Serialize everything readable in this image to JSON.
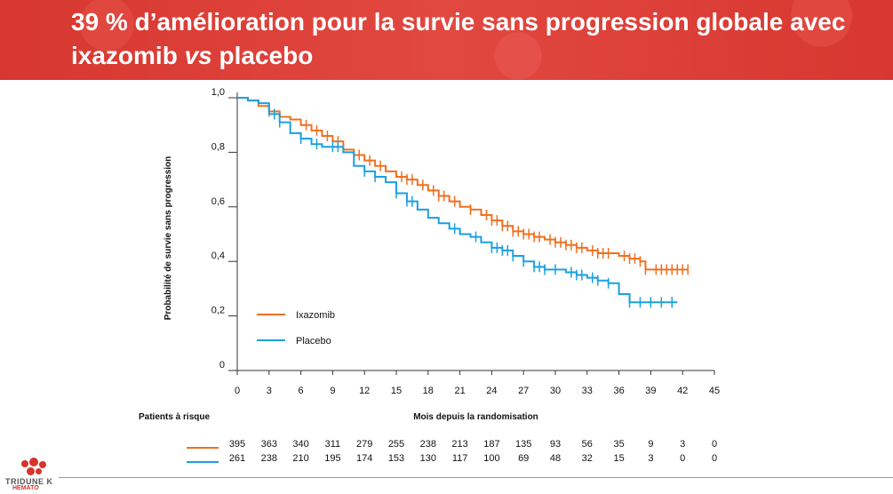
{
  "header": {
    "title_part1": "39 % d’amélioration pour la survie sans progression globale avec ixazomib ",
    "title_italic": "vs",
    "title_part2": " placebo"
  },
  "logo": {
    "name": "TRIDUNE K",
    "sub": "HEMATO"
  },
  "chart_data": {
    "type": "line",
    "xlabel": "Mois depuis la randomisation",
    "ylabel": "Probabilité de survie sans progression",
    "xlim": [
      0,
      45
    ],
    "ylim": [
      0,
      1.0
    ],
    "x_ticks": [
      "0",
      "3",
      "6",
      "9",
      "12",
      "15",
      "18",
      "21",
      "24",
      "27",
      "30",
      "33",
      "36",
      "39",
      "42",
      "45"
    ],
    "y_ticks": [
      "0",
      "0,2",
      "0,4",
      "0,6",
      "0,8",
      "1,0"
    ],
    "legend": [
      "Ixazomib",
      "Placebo"
    ],
    "legend_position": "bottom-left",
    "colors": {
      "Ixazomib": "#f07020",
      "Placebo": "#1aa0e0"
    },
    "series": [
      {
        "name": "Ixazomib",
        "points": [
          [
            0,
            1.0
          ],
          [
            1,
            0.99
          ],
          [
            2,
            0.97
          ],
          [
            3,
            0.95
          ],
          [
            4,
            0.93
          ],
          [
            5,
            0.92
          ],
          [
            6,
            0.9
          ],
          [
            7,
            0.88
          ],
          [
            8,
            0.86
          ],
          [
            9,
            0.84
          ],
          [
            10,
            0.81
          ],
          [
            11,
            0.79
          ],
          [
            12,
            0.77
          ],
          [
            13,
            0.75
          ],
          [
            14,
            0.73
          ],
          [
            15,
            0.71
          ],
          [
            16,
            0.7
          ],
          [
            17,
            0.68
          ],
          [
            18,
            0.66
          ],
          [
            19,
            0.64
          ],
          [
            20,
            0.62
          ],
          [
            21,
            0.6
          ],
          [
            22,
            0.59
          ],
          [
            23,
            0.57
          ],
          [
            24,
            0.55
          ],
          [
            25,
            0.53
          ],
          [
            26,
            0.51
          ],
          [
            27,
            0.5
          ],
          [
            28,
            0.49
          ],
          [
            29,
            0.48
          ],
          [
            30,
            0.47
          ],
          [
            31,
            0.46
          ],
          [
            32,
            0.45
          ],
          [
            33,
            0.44
          ],
          [
            34,
            0.43
          ],
          [
            35,
            0.43
          ],
          [
            36,
            0.42
          ],
          [
            37,
            0.41
          ],
          [
            38,
            0.4
          ],
          [
            38.5,
            0.37
          ],
          [
            42.5,
            0.37
          ]
        ],
        "censor_x": [
          3,
          6.5,
          7.5,
          8.5,
          9.5,
          11.5,
          12.5,
          13.5,
          15.5,
          16,
          16.5,
          17.5,
          18.5,
          19,
          19.5,
          20.5,
          22,
          23.5,
          24,
          24.5,
          25,
          25.5,
          26,
          26.5,
          27,
          27.5,
          28,
          28.5,
          29.5,
          30,
          30.5,
          31,
          31.5,
          32,
          32.5,
          33.5,
          34,
          34.5,
          35,
          36.5,
          37,
          37.5,
          38,
          38.5,
          39.5,
          40,
          40.5,
          41,
          41.5,
          42,
          42.5
        ]
      },
      {
        "name": "Placebo",
        "points": [
          [
            0,
            1.0
          ],
          [
            1,
            0.99
          ],
          [
            2,
            0.98
          ],
          [
            3,
            0.94
          ],
          [
            4,
            0.91
          ],
          [
            5,
            0.87
          ],
          [
            6,
            0.85
          ],
          [
            7,
            0.83
          ],
          [
            8,
            0.82
          ],
          [
            9,
            0.82
          ],
          [
            10,
            0.8
          ],
          [
            11,
            0.75
          ],
          [
            12,
            0.73
          ],
          [
            13,
            0.71
          ],
          [
            14,
            0.69
          ],
          [
            15,
            0.65
          ],
          [
            16,
            0.62
          ],
          [
            17,
            0.59
          ],
          [
            18,
            0.56
          ],
          [
            19,
            0.54
          ],
          [
            20,
            0.52
          ],
          [
            21,
            0.5
          ],
          [
            22,
            0.49
          ],
          [
            23,
            0.47
          ],
          [
            24,
            0.45
          ],
          [
            25,
            0.44
          ],
          [
            26,
            0.42
          ],
          [
            27,
            0.4
          ],
          [
            28,
            0.38
          ],
          [
            29,
            0.37
          ],
          [
            30,
            0.37
          ],
          [
            31,
            0.36
          ],
          [
            32,
            0.35
          ],
          [
            33,
            0.34
          ],
          [
            34,
            0.33
          ],
          [
            35,
            0.32
          ],
          [
            36,
            0.28
          ],
          [
            37,
            0.25
          ],
          [
            41.5,
            0.25
          ]
        ],
        "censor_x": [
          3.5,
          4,
          6,
          7.5,
          9,
          9.5,
          12,
          13,
          15,
          16,
          16.5,
          20.5,
          22.5,
          24,
          24.5,
          25,
          25.5,
          26,
          27,
          28,
          28.5,
          29,
          30,
          31.5,
          32,
          32.5,
          33.5,
          34,
          35,
          37,
          38,
          39,
          40,
          41
        ]
      }
    ],
    "risk_table": {
      "title": "Patients à risque",
      "rows": [
        {
          "name": "Ixazomib",
          "values": [
            "395",
            "363",
            "340",
            "311",
            "279",
            "255",
            "238",
            "213",
            "187",
            "135",
            "93",
            "56",
            "35",
            "9",
            "3",
            "0"
          ]
        },
        {
          "name": "Placebo",
          "values": [
            "261",
            "238",
            "210",
            "195",
            "174",
            "153",
            "130",
            "117",
            "100",
            "69",
            "48",
            "32",
            "15",
            "3",
            "0",
            "0"
          ]
        }
      ]
    }
  }
}
